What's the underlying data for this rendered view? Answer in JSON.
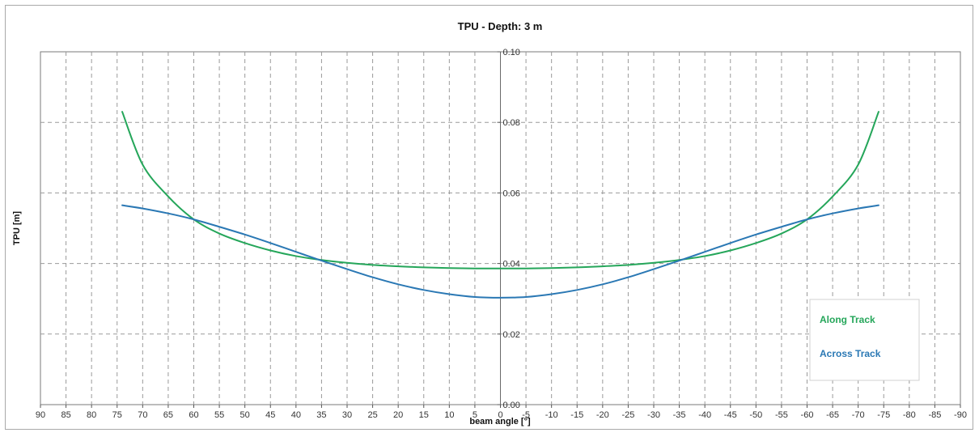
{
  "chart_data": {
    "type": "line",
    "title": "TPU - Depth: 3 m",
    "xlabel": "beam angle [°]",
    "ylabel": "TPU [m]",
    "xlim": [
      90,
      -90
    ],
    "ylim": [
      0,
      0.1
    ],
    "x_ticks": [
      "90",
      "85",
      "80",
      "75",
      "70",
      "65",
      "60",
      "55",
      "50",
      "45",
      "40",
      "35",
      "30",
      "25",
      "20",
      "15",
      "10",
      "5",
      "0",
      "-5",
      "-10",
      "-15",
      "-20",
      "-25",
      "-30",
      "-35",
      "-40",
      "-45",
      "-50",
      "-55",
      "-60",
      "-65",
      "-70",
      "-75",
      "-80",
      "-85",
      "-90"
    ],
    "y_ticks": [
      "0.00",
      "0.02",
      "0.04",
      "0.06",
      "0.08",
      "0.10"
    ],
    "grid": true,
    "legend_position": "bottom-right",
    "series": [
      {
        "name": "Along Track",
        "color": "#25a65a",
        "x": [
          74,
          70,
          65,
          60,
          55,
          50,
          45,
          40,
          35,
          30,
          25,
          20,
          15,
          10,
          5,
          0,
          -5,
          -10,
          -15,
          -20,
          -25,
          -30,
          -35,
          -40,
          -45,
          -50,
          -55,
          -60,
          -65,
          -70,
          -74
        ],
        "y": [
          0.083,
          0.068,
          0.059,
          0.0525,
          0.0485,
          0.0458,
          0.0437,
          0.0421,
          0.041,
          0.0402,
          0.0396,
          0.0392,
          0.0389,
          0.0387,
          0.0386,
          0.0386,
          0.0386,
          0.0387,
          0.0389,
          0.0392,
          0.0396,
          0.0402,
          0.041,
          0.0421,
          0.0437,
          0.0458,
          0.0485,
          0.0525,
          0.059,
          0.068,
          0.083
        ]
      },
      {
        "name": "Across Track",
        "color": "#2a78b4",
        "x": [
          74,
          70,
          65,
          60,
          55,
          50,
          45,
          40,
          35,
          30,
          25,
          20,
          15,
          10,
          5,
          0,
          -5,
          -10,
          -15,
          -20,
          -25,
          -30,
          -35,
          -40,
          -45,
          -50,
          -55,
          -60,
          -65,
          -70,
          -74
        ],
        "y": [
          0.0565,
          0.0556,
          0.0542,
          0.0525,
          0.0504,
          0.0482,
          0.0458,
          0.0433,
          0.0408,
          0.0384,
          0.0361,
          0.0341,
          0.0325,
          0.0313,
          0.0305,
          0.0303,
          0.0305,
          0.0313,
          0.0325,
          0.0341,
          0.0361,
          0.0384,
          0.0408,
          0.0433,
          0.0458,
          0.0482,
          0.0504,
          0.0525,
          0.0542,
          0.0556,
          0.0565
        ]
      }
    ]
  }
}
